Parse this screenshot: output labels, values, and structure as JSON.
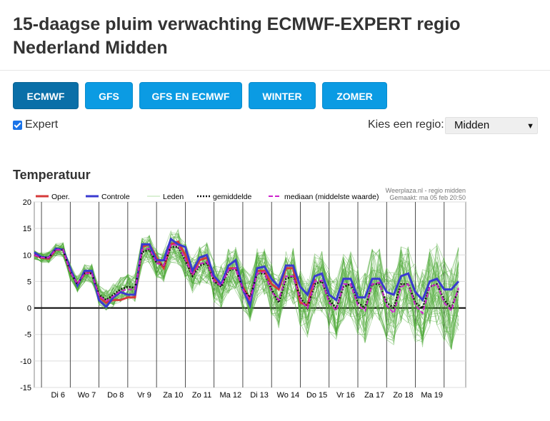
{
  "page": {
    "title": "15-daagse pluim verwachting ECMWF-EXPERT regio Nederland Midden"
  },
  "tabs": [
    {
      "label": "ECMWF",
      "active": true
    },
    {
      "label": "GFS",
      "active": false
    },
    {
      "label": "GFS EN ECMWF",
      "active": false
    },
    {
      "label": "WINTER",
      "active": false
    },
    {
      "label": "ZOMER",
      "active": false
    }
  ],
  "expert": {
    "label": "Expert",
    "checked": true
  },
  "region": {
    "label": "Kies een regio:",
    "selected": "Midden"
  },
  "section": {
    "title": "Temperatuur"
  },
  "chart_data": {
    "type": "line",
    "title": "",
    "source_line1": "Weerplaza.nl - regio midden",
    "source_line2": "Gemaakt: ma 05 feb 20:50",
    "xlabel": "",
    "ylabel": "",
    "ylim": [
      -15,
      20
    ],
    "yticks": [
      20,
      15,
      10,
      5,
      0,
      -5,
      -10,
      -15
    ],
    "x_labels": [
      "Di 6",
      "Wo 7",
      "Do 8",
      "Vr 9",
      "Za 10",
      "Zo 11",
      "Ma 12",
      "Di 13",
      "Wo 14",
      "Do 15",
      "Vr 16",
      "Za 17",
      "Zo 18",
      "Ma 19"
    ],
    "grid": true,
    "legend_position": "top",
    "legend": [
      {
        "name": "Oper.",
        "color": "#d63a3a"
      },
      {
        "name": "Controle",
        "color": "#3a3ad0"
      },
      {
        "name": "Leden",
        "color": "#b6e0a8"
      },
      {
        "name": "gemiddelde",
        "color": "#111111"
      },
      {
        "name": "mediaan (middelste waarde)",
        "color": "#cc22cc"
      }
    ],
    "steps_per_day": 4,
    "series": [
      {
        "name": "Oper.",
        "color": "#d63a3a",
        "values": [
          10,
          9.5,
          9.3,
          11,
          11,
          7,
          4.5,
          6.5,
          6.8,
          2,
          1,
          1.5,
          1.5,
          2,
          2,
          11.5,
          12,
          9.5,
          7.5,
          12,
          12.5,
          10,
          6.5,
          9,
          9.5,
          5.5,
          4.5,
          7.5,
          7.5,
          4,
          1.5,
          7,
          7,
          4.5,
          3.5,
          7.5,
          7.5,
          1,
          0.5,
          5.5
        ]
      },
      {
        "name": "Controle",
        "color": "#3a3ad0",
        "values": [
          10.5,
          9.6,
          9.5,
          11.2,
          11,
          7.5,
          4.2,
          7,
          7,
          1.5,
          0.2,
          2,
          3,
          2.5,
          2.5,
          12,
          12,
          9,
          9,
          13,
          12,
          11.5,
          7,
          9.5,
          10,
          6,
          4.5,
          8,
          9,
          3.5,
          0.5,
          7.5,
          7.8,
          5.5,
          4,
          8,
          8,
          4,
          2.5,
          6,
          6.5,
          2.5,
          1.5,
          5.5,
          5.5,
          2,
          2,
          5.5,
          5.5,
          3,
          2.5,
          6,
          6.5,
          3,
          1.5,
          5,
          5.5,
          3.5,
          3.5,
          5
        ]
      },
      {
        "name": "gemiddelde",
        "color": "#111111",
        "values": [
          10,
          9.5,
          9.5,
          11,
          11,
          6.8,
          4.5,
          6.5,
          6.5,
          2.5,
          1.5,
          2.5,
          3.5,
          4,
          3.8,
          10.5,
          11,
          8.5,
          8,
          11.5,
          11.5,
          9,
          6,
          8,
          8.5,
          5,
          4,
          7,
          7.5,
          3.5,
          2,
          6.5,
          6.5,
          3.5,
          1,
          5.5,
          6,
          2,
          0,
          4.5,
          5,
          1.5,
          0,
          4,
          4.5,
          1,
          0,
          4.5,
          4.5,
          1,
          0,
          4.5,
          4.5,
          1,
          0,
          4,
          4.5,
          1.5,
          0,
          3.5
        ]
      },
      {
        "name": "mediaan (middelste waarde)",
        "color": "#cc22cc",
        "values": [
          10,
          9.5,
          9.5,
          11,
          11,
          6.8,
          4.5,
          6.5,
          6.5,
          2.3,
          1.3,
          2.2,
          3.2,
          3.5,
          3.5,
          11,
          11.2,
          8.5,
          8,
          12,
          11.8,
          9.2,
          6.2,
          8.3,
          8.7,
          5,
          4.2,
          7.2,
          7.5,
          3.5,
          1.5,
          6.5,
          6.8,
          3,
          1.5,
          6,
          6,
          1.5,
          0,
          5,
          5.2,
          1,
          -0.5,
          4.5,
          4.5,
          0.5,
          -0.5,
          4.5,
          4.8,
          0.5,
          -1,
          4,
          4.5,
          0.5,
          -1,
          4,
          4.5,
          1,
          -0.5,
          3.8
        ]
      }
    ],
    "members_count": 50,
    "members_spread_description": "Leden"
  }
}
